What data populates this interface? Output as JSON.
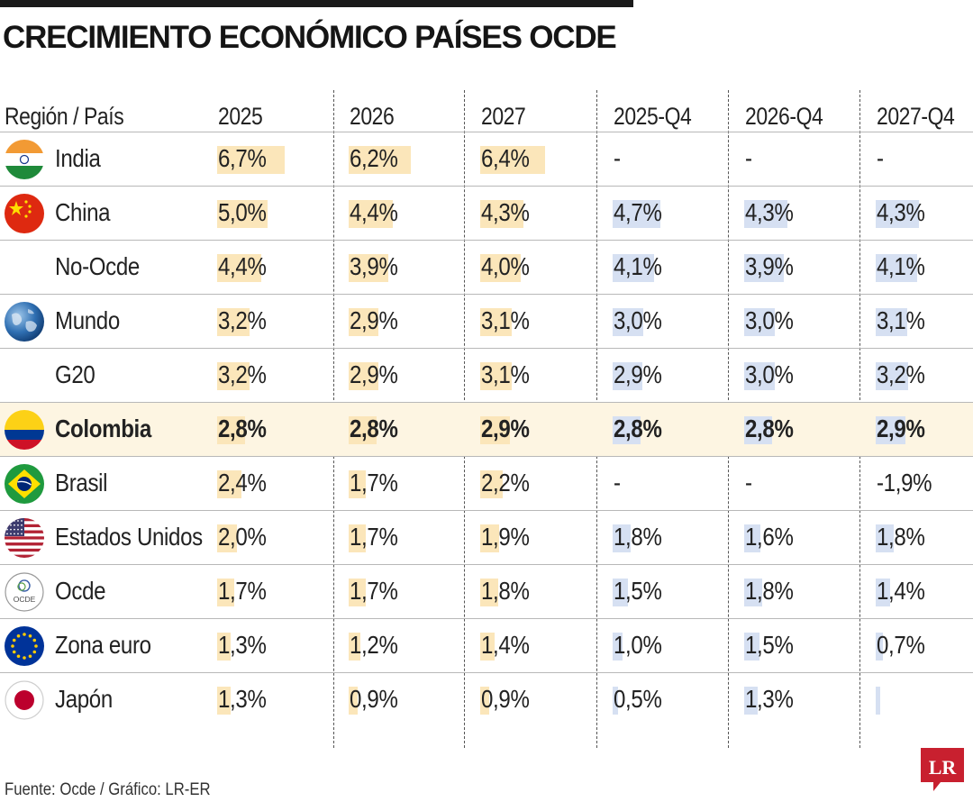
{
  "title": "CRECIMIENTO ECONÓMICO PAÍSES OCDE",
  "source": "Fuente: Ocde / Gráfico: LR-ER",
  "logo_text": "LR",
  "colors": {
    "annual_bar": "#fbe6ba",
    "quarterly_bar": "#d6e0f2",
    "highlight_row": "#fdf5e2",
    "logo": "#c8202f"
  },
  "chart_data": {
    "type": "table",
    "columns": [
      "Región / País",
      "2025",
      "2026",
      "2027",
      "2025-Q4",
      "2026-Q4",
      "2027-Q4"
    ],
    "unit": "%",
    "highlighted_row": "Colombia",
    "rows": [
      {
        "name": "India",
        "flag": "india-flag-icon",
        "values": [
          6.7,
          6.2,
          6.4,
          null,
          null,
          null
        ],
        "labels": [
          "6,7%",
          "6,2%",
          "6,4%",
          "-",
          "-",
          "-"
        ]
      },
      {
        "name": "China",
        "flag": "china-flag-icon",
        "values": [
          5.0,
          4.4,
          4.3,
          4.7,
          4.3,
          4.3
        ],
        "labels": [
          "5,0%",
          "4,4%",
          "4,3%",
          "4,7%",
          "4,3%",
          "4,3%"
        ]
      },
      {
        "name": "No-Ocde",
        "flag": "",
        "values": [
          4.4,
          3.9,
          4.0,
          4.1,
          3.9,
          4.1
        ],
        "labels": [
          "4,4%",
          "3,9%",
          "4,0%",
          "4,1%",
          "3,9%",
          "4,1%"
        ]
      },
      {
        "name": "Mundo",
        "flag": "globe-icon",
        "values": [
          3.2,
          2.9,
          3.1,
          3.0,
          3.0,
          3.1
        ],
        "labels": [
          "3,2%",
          "2,9%",
          "3,1%",
          "3,0%",
          "3,0%",
          "3,1%"
        ]
      },
      {
        "name": "G20",
        "flag": "",
        "values": [
          3.2,
          2.9,
          3.1,
          2.9,
          3.0,
          3.2
        ],
        "labels": [
          "3,2%",
          "2,9%",
          "3,1%",
          "2,9%",
          "3,0%",
          "3,2%"
        ]
      },
      {
        "name": "Colombia",
        "flag": "colombia-flag-icon",
        "values": [
          2.8,
          2.8,
          2.9,
          2.8,
          2.8,
          2.9
        ],
        "labels": [
          "2,8%",
          "2,8%",
          "2,9%",
          "2,8%",
          "2,8%",
          "2,9%"
        ]
      },
      {
        "name": "Brasil",
        "flag": "brazil-flag-icon",
        "values": [
          2.4,
          1.7,
          2.2,
          null,
          null,
          -1.9
        ],
        "labels": [
          "2,4%",
          "1,7%",
          "2,2%",
          "-",
          "-",
          "-1,9%"
        ]
      },
      {
        "name": "Estados Unidos",
        "flag": "usa-flag-icon",
        "values": [
          2.0,
          1.7,
          1.9,
          1.8,
          1.6,
          1.8
        ],
        "labels": [
          "2,0%",
          "1,7%",
          "1,9%",
          "1,8%",
          "1,6%",
          "1,8%"
        ]
      },
      {
        "name": "Ocde",
        "flag": "oecd-logo-icon",
        "values": [
          1.7,
          1.7,
          1.8,
          1.5,
          1.8,
          1.4
        ],
        "labels": [
          "1,7%",
          "1,7%",
          "1,8%",
          "1,5%",
          "1,8%",
          "1,4%"
        ]
      },
      {
        "name": "Zona euro",
        "flag": "eu-flag-icon",
        "values": [
          1.3,
          1.2,
          1.4,
          1.0,
          1.5,
          0.7
        ],
        "labels": [
          "1,3%",
          "1,2%",
          "1,4%",
          "1,0%",
          "1,5%",
          "0,7%"
        ]
      },
      {
        "name": "Japón",
        "flag": "japan-flag-icon",
        "values": [
          1.3,
          0.9,
          0.9,
          0.5,
          1.3,
          0.4
        ],
        "labels": [
          "1,3%",
          "0,9%",
          "0,9%",
          "0,5%",
          "1,3%",
          ""
        ]
      }
    ]
  }
}
